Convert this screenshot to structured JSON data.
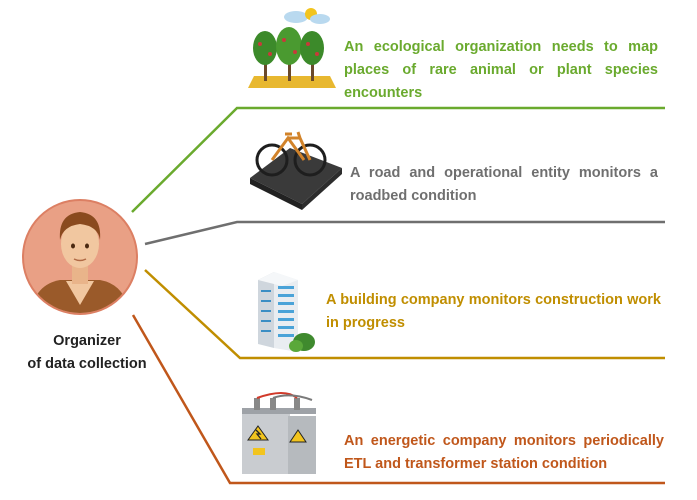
{
  "organizer": {
    "line1": "Organizer",
    "line2": "of data collection"
  },
  "items": [
    {
      "text": "An ecological organization needs to map places of rare animal or plant species encounters",
      "color": "#6aaa2e",
      "icon": "forest-icon"
    },
    {
      "text": "A road and operational entity monitors a roadbed condition",
      "color": "#6f6f6f",
      "icon": "bicycle-road-icon"
    },
    {
      "text": "A building company monitors construction work in progress",
      "color": "#c08e00",
      "icon": "office-building-icon"
    },
    {
      "text": "An energetic company monitors periodically ETL and transformer station condition",
      "color": "#c0571b",
      "icon": "transformer-icon"
    }
  ],
  "colors": {
    "avatar_bg": "#e9a085",
    "avatar_border": "#dc7f63"
  }
}
